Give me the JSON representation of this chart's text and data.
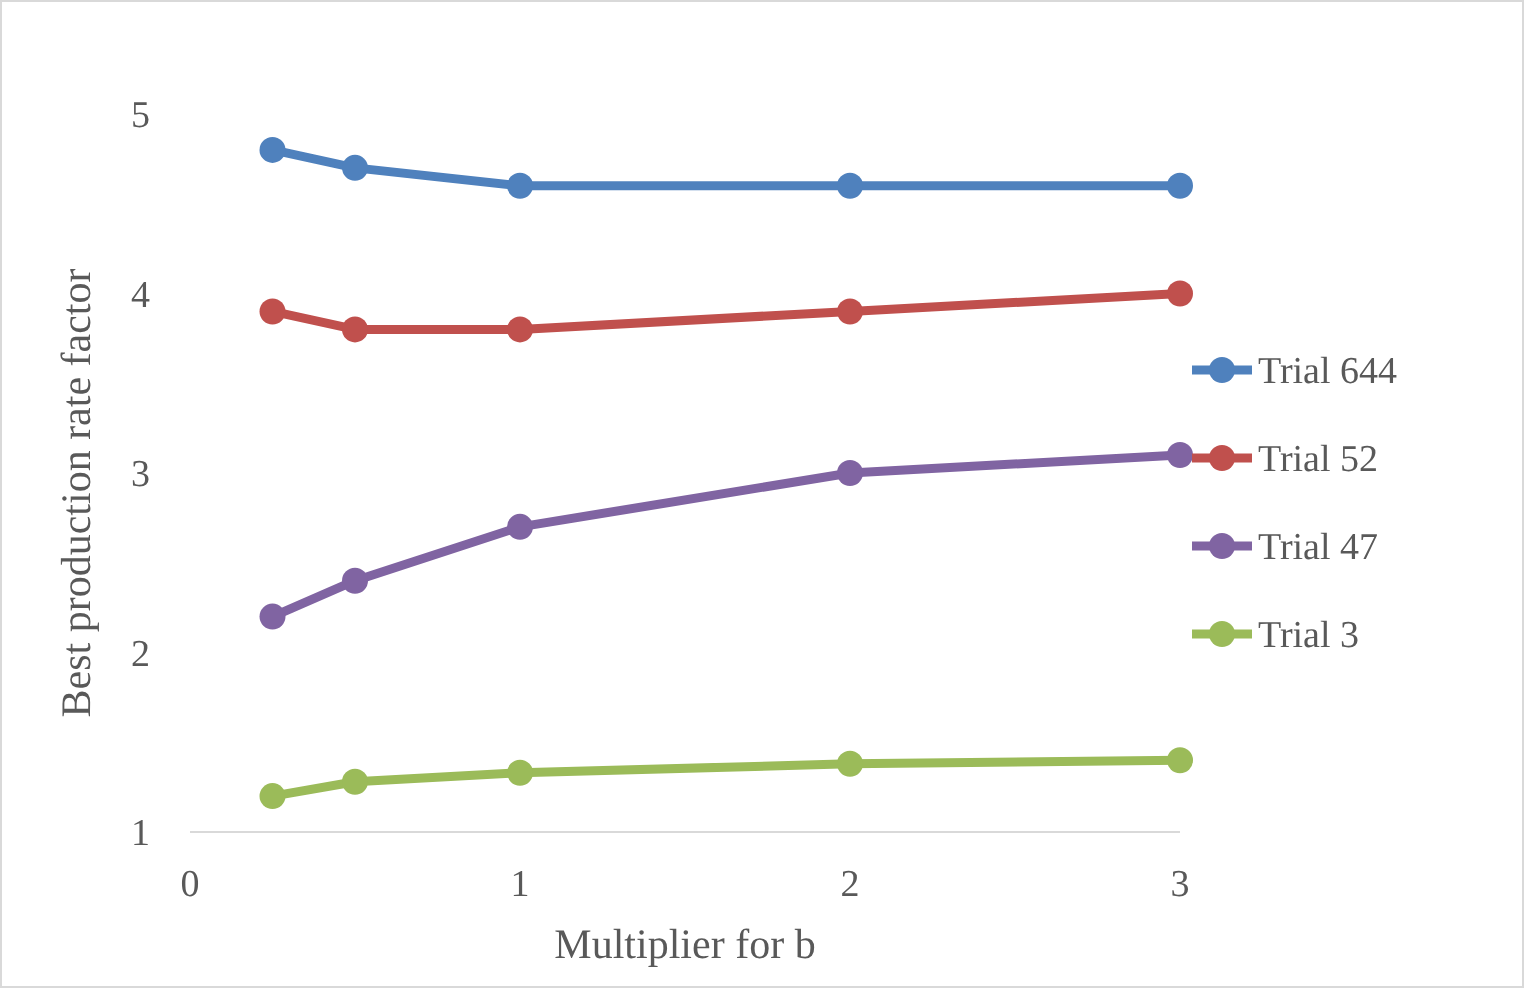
{
  "chart_data": {
    "type": "line",
    "xlabel": "Multiplier for b",
    "ylabel": "Best production rate factor",
    "x": [
      0.25,
      0.5,
      1,
      2,
      3
    ],
    "series": [
      {
        "name": "Trial 644",
        "color": "#4f81bd",
        "values": [
          4.8,
          4.7,
          4.6,
          4.6,
          4.6
        ]
      },
      {
        "name": "Trial 52",
        "color": "#c0504d",
        "values": [
          3.9,
          3.8,
          3.8,
          3.9,
          4.0
        ]
      },
      {
        "name": "Trial 47",
        "color": "#8064a2",
        "values": [
          2.2,
          2.4,
          2.7,
          3.0,
          3.1
        ]
      },
      {
        "name": "Trial 3",
        "color": "#9bbb59",
        "values": [
          1.2,
          1.28,
          1.33,
          1.38,
          1.4
        ]
      }
    ],
    "xlim": [
      0,
      3
    ],
    "xticks": [
      0,
      1,
      2,
      3
    ],
    "ylim": [
      1,
      5
    ],
    "yticks": [
      1,
      2,
      3,
      4,
      5
    ],
    "grid": false,
    "legend": "right",
    "marker": "circle",
    "line_style": "solid"
  }
}
